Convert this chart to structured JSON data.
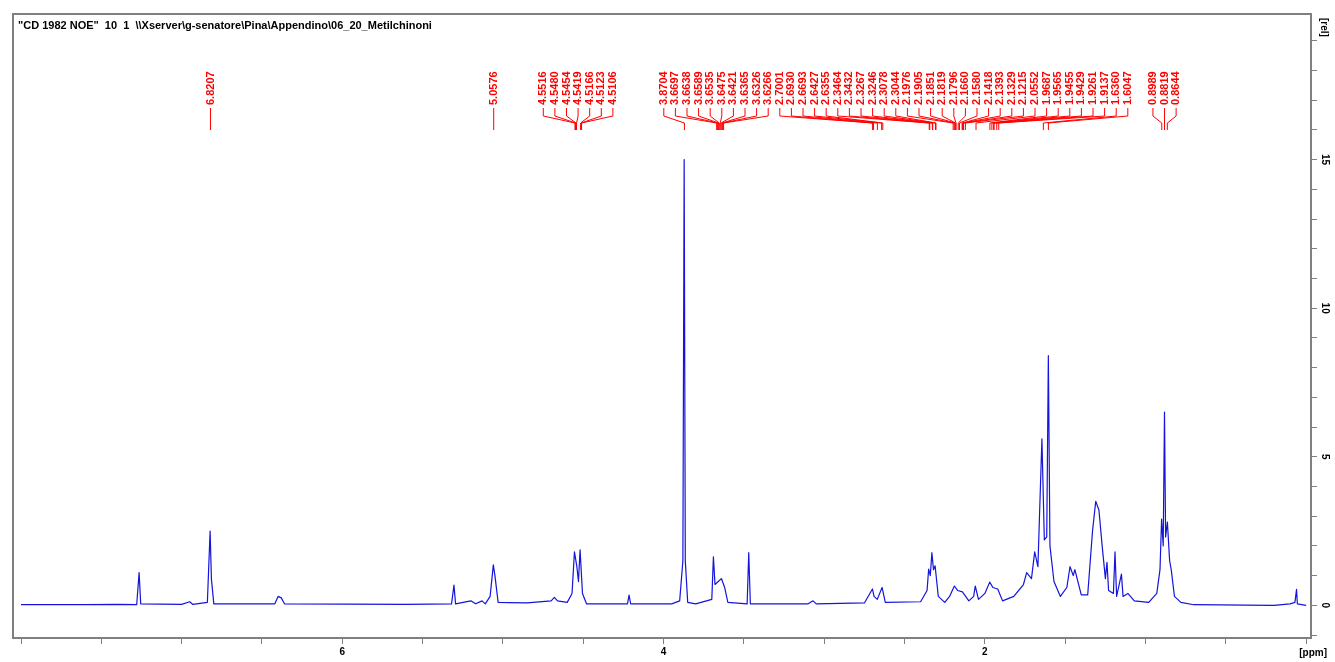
{
  "chart_data": {
    "type": "line",
    "title": "\"CD 1982 NOE\"  10  1  \\\\Xserver\\g-senatore\\Pina\\Appendino\\06_20_Metilchinoni",
    "xlabel": "[ppm]",
    "ylabel": "[rel]",
    "marker": "none",
    "xlim": [
      8.05,
      -0.03
    ],
    "xticks": [
      {
        "value": 8,
        "label": null
      },
      {
        "value": 7.5,
        "label": null
      },
      {
        "value": 7,
        "label": null
      },
      {
        "value": 6.5,
        "label": null
      },
      6,
      {
        "value": 5.5,
        "label": null
      },
      {
        "value": 5,
        "label": null
      },
      {
        "value": 4.5,
        "label": null
      },
      4,
      {
        "value": 3.5,
        "label": null
      },
      {
        "value": 3,
        "label": null
      },
      {
        "value": 2.5,
        "label": null
      },
      2,
      {
        "value": 1.5,
        "label": null
      },
      {
        "value": 1,
        "label": null
      },
      {
        "value": 0.5,
        "label": null
      },
      {
        "value": 0,
        "label": null
      }
    ],
    "ylim": [
      -1.1,
      19.9
    ],
    "yticks": [
      {
        "value": -1,
        "label": null
      },
      0,
      {
        "value": 1,
        "label": null
      },
      {
        "value": 2,
        "label": null
      },
      {
        "value": 3,
        "label": null
      },
      {
        "value": 4,
        "label": null
      },
      5,
      {
        "value": 6,
        "label": null
      },
      {
        "value": 7,
        "label": null
      },
      {
        "value": 8,
        "label": null
      },
      {
        "value": 9,
        "label": null
      },
      10,
      {
        "value": 11,
        "label": null
      },
      {
        "value": 12,
        "label": null
      },
      {
        "value": 13,
        "label": null
      },
      {
        "value": 14,
        "label": null
      },
      15,
      {
        "value": 16,
        "label": null
      },
      {
        "value": 17,
        "label": null
      },
      {
        "value": 18,
        "label": null
      },
      {
        "value": 19,
        "label": null
      }
    ],
    "series": [
      {
        "color": "#1414dc",
        "x": [
          8.0,
          7.6,
          7.4,
          7.28,
          7.265,
          7.255,
          7.0,
          6.95,
          6.93,
          6.84,
          6.823,
          6.815,
          6.8,
          6.42,
          6.4,
          6.38,
          6.36,
          5.6,
          5.32,
          5.305,
          5.295,
          5.2,
          5.17,
          5.13,
          5.11,
          5.08,
          5.06,
          5.05,
          5.03,
          4.85,
          4.7,
          4.68,
          4.66,
          4.6,
          4.57,
          4.555,
          4.54,
          4.53,
          4.52,
          4.505,
          4.48,
          4.225,
          4.215,
          4.205,
          3.95,
          3.9,
          3.88,
          3.872,
          3.865,
          3.85,
          3.8,
          3.7,
          3.69,
          3.68,
          3.66,
          3.64,
          3.62,
          3.6,
          3.48,
          3.47,
          3.46,
          3.1,
          3.07,
          3.05,
          2.75,
          2.7,
          2.69,
          2.67,
          2.64,
          2.62,
          2.4,
          2.36,
          2.35,
          2.34,
          2.33,
          2.32,
          2.31,
          2.29,
          2.25,
          2.22,
          2.19,
          2.17,
          2.14,
          2.1,
          2.07,
          2.06,
          2.04,
          2.0,
          1.97,
          1.95,
          1.92,
          1.89,
          1.82,
          1.76,
          1.74,
          1.71,
          1.69,
          1.67,
          1.645,
          1.63,
          1.615,
          1.605,
          1.595,
          1.57,
          1.53,
          1.49,
          1.47,
          1.45,
          1.44,
          1.4,
          1.36,
          1.33,
          1.31,
          1.29,
          1.27,
          1.25,
          1.24,
          1.23,
          1.2,
          1.19,
          1.18,
          1.15,
          1.14,
          1.11,
          1.07,
          0.98,
          0.93,
          0.91,
          0.9,
          0.89,
          0.882,
          0.875,
          0.864,
          0.85,
          0.84,
          0.82,
          0.78,
          0.7,
          0.2,
          0.1,
          0.07,
          0.06,
          0.055,
          0.0
        ],
        "values": [
          0.02,
          0.02,
          0.03,
          0.02,
          1.1,
          0.05,
          0.03,
          0.12,
          0.03,
          0.1,
          2.5,
          0.9,
          0.05,
          0.05,
          0.3,
          0.25,
          0.05,
          0.03,
          0.05,
          0.68,
          0.05,
          0.15,
          0.05,
          0.15,
          0.05,
          0.3,
          1.36,
          1.0,
          0.1,
          0.08,
          0.15,
          0.27,
          0.15,
          0.1,
          0.4,
          1.8,
          1.3,
          0.8,
          1.87,
          0.4,
          0.05,
          0.05,
          0.34,
          0.05,
          0.05,
          0.15,
          1.5,
          15.0,
          1.5,
          0.1,
          0.05,
          0.2,
          1.63,
          0.7,
          0.8,
          0.9,
          0.6,
          0.1,
          0.05,
          1.77,
          0.05,
          0.05,
          0.15,
          0.05,
          0.08,
          0.55,
          0.3,
          0.2,
          0.6,
          0.1,
          0.12,
          0.5,
          1.22,
          1.0,
          1.77,
          1.2,
          1.33,
          0.3,
          0.1,
          0.3,
          0.65,
          0.5,
          0.45,
          0.15,
          0.3,
          0.65,
          0.2,
          0.4,
          0.78,
          0.6,
          0.55,
          0.15,
          0.3,
          0.7,
          1.1,
          0.9,
          1.8,
          1.3,
          5.6,
          2.2,
          2.3,
          8.4,
          2.0,
          0.8,
          0.3,
          0.6,
          1.3,
          1.0,
          1.2,
          0.35,
          0.35,
          2.5,
          3.5,
          3.2,
          2.0,
          0.9,
          1.45,
          0.5,
          0.4,
          1.8,
          0.3,
          1.05,
          0.3,
          0.4,
          0.15,
          0.1,
          0.4,
          1.2,
          2.9,
          2.0,
          6.5,
          2.3,
          2.8,
          1.5,
          1.2,
          0.3,
          0.1,
          0.02,
          0.0,
          0.05,
          0.1,
          0.54,
          0.05,
          0.0
        ]
      }
    ],
    "annotations": [
      {
        "text": "6.8207",
        "x": 6.8207
      },
      {
        "text": "5.0576",
        "x": 5.0576
      },
      {
        "text": "4.5516",
        "x": 4.5516
      },
      {
        "text": "4.5480",
        "x": 4.548
      },
      {
        "text": "4.5454",
        "x": 4.5454
      },
      {
        "text": "4.5419",
        "x": 4.5419
      },
      {
        "text": "4.5166",
        "x": 4.5166
      },
      {
        "text": "4.5123",
        "x": 4.5123
      },
      {
        "text": "4.5106",
        "x": 4.5106
      },
      {
        "text": "3.8704",
        "x": 3.8704
      },
      {
        "text": "3.6697",
        "x": 3.6697
      },
      {
        "text": "3.6638",
        "x": 3.6638
      },
      {
        "text": "3.6589",
        "x": 3.6589
      },
      {
        "text": "3.6535",
        "x": 3.6535
      },
      {
        "text": "3.6475",
        "x": 3.6475
      },
      {
        "text": "3.6421",
        "x": 3.6421
      },
      {
        "text": "3.6365",
        "x": 3.6365
      },
      {
        "text": "3.6326",
        "x": 3.6326
      },
      {
        "text": "3.6266",
        "x": 3.6266
      },
      {
        "text": "2.7001",
        "x": 2.7001
      },
      {
        "text": "2.6930",
        "x": 2.693
      },
      {
        "text": "2.6693",
        "x": 2.6693
      },
      {
        "text": "2.6427",
        "x": 2.6427
      },
      {
        "text": "2.6355",
        "x": 2.6355
      },
      {
        "text": "2.3464",
        "x": 2.3464
      },
      {
        "text": "2.3432",
        "x": 2.3432
      },
      {
        "text": "2.3267",
        "x": 2.3267
      },
      {
        "text": "2.3246",
        "x": 2.3246
      },
      {
        "text": "2.3078",
        "x": 2.3078
      },
      {
        "text": "2.3044",
        "x": 2.3044
      },
      {
        "text": "2.1976",
        "x": 2.1976
      },
      {
        "text": "2.1905",
        "x": 2.1905
      },
      {
        "text": "2.1851",
        "x": 2.1851
      },
      {
        "text": "2.1819",
        "x": 2.1819
      },
      {
        "text": "2.1796",
        "x": 2.1796
      },
      {
        "text": "2.1660",
        "x": 2.166
      },
      {
        "text": "2.1580",
        "x": 2.158
      },
      {
        "text": "2.1418",
        "x": 2.1418
      },
      {
        "text": "2.1393",
        "x": 2.1393
      },
      {
        "text": "2.1329",
        "x": 2.1329
      },
      {
        "text": "2.1215",
        "x": 2.1215
      },
      {
        "text": "2.0552",
        "x": 2.0552
      },
      {
        "text": "1.9687",
        "x": 1.9687
      },
      {
        "text": "1.9565",
        "x": 1.9565
      },
      {
        "text": "1.9455",
        "x": 1.9455
      },
      {
        "text": "1.9429",
        "x": 1.9429
      },
      {
        "text": "1.9261",
        "x": 1.9261
      },
      {
        "text": "1.9137",
        "x": 1.9137
      },
      {
        "text": "1.6360",
        "x": 1.636
      },
      {
        "text": "1.6047",
        "x": 1.6047
      },
      {
        "text": "0.8989",
        "x": 0.8989
      },
      {
        "text": "0.8819",
        "x": 0.8819
      },
      {
        "text": "0.8644",
        "x": 0.8644
      }
    ]
  }
}
